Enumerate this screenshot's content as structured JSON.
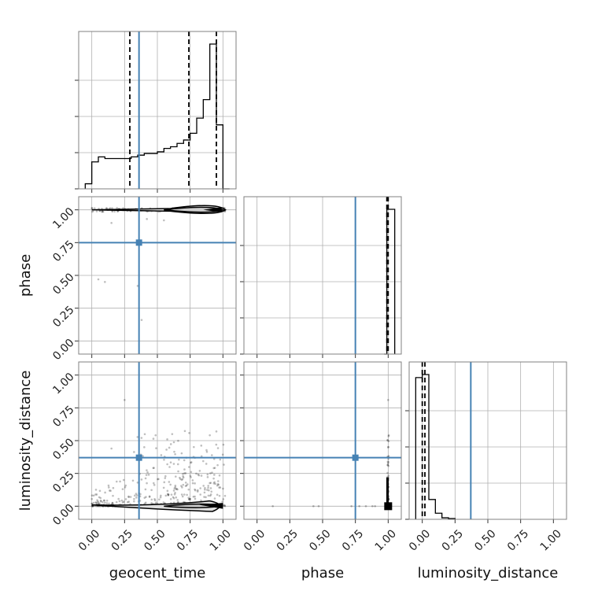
{
  "chart_data": {
    "type": "corner",
    "parameters": [
      "geocent_time",
      "phase",
      "luminosity_distance"
    ],
    "axis_labels": {
      "x": [
        "geocent_time",
        "phase",
        "luminosity_distance"
      ],
      "y": [
        "phase",
        "luminosity_distance"
      ]
    },
    "tick_labels": [
      "0.00",
      "0.25",
      "0.50",
      "0.75",
      "1.00"
    ],
    "axis_range": [
      -0.1,
      1.1
    ],
    "grid": true,
    "truth": {
      "geocent_time": 0.36,
      "phase": 0.75,
      "luminosity_distance": 0.37
    },
    "truth_color": "#4682b4",
    "quantiles": {
      "geocent_time": [
        0.29,
        0.74,
        0.95
      ],
      "phase": [
        0.99,
        1.0
      ],
      "luminosity_distance": [
        0.0,
        0.02
      ]
    },
    "histograms": {
      "geocent_time": {
        "bin_edges": [
          -0.05,
          0.0,
          0.05,
          0.1,
          0.15,
          0.2,
          0.25,
          0.3,
          0.35,
          0.4,
          0.45,
          0.5,
          0.55,
          0.6,
          0.65,
          0.7,
          0.75,
          0.8,
          0.85,
          0.9,
          0.95,
          1.0,
          1.05
        ],
        "counts": [
          0.03,
          0.16,
          0.19,
          0.18,
          0.18,
          0.18,
          0.18,
          0.19,
          0.2,
          0.21,
          0.21,
          0.22,
          0.24,
          0.25,
          0.27,
          0.29,
          0.33,
          0.42,
          0.53,
          0.86,
          0.38,
          0.0
        ]
      },
      "phase": {
        "bin_edges": [
          0.97,
          0.99,
          1.05
        ],
        "counts": [
          0.0,
          1.0
        ]
      },
      "luminosity_distance": {
        "bin_edges": [
          -0.05,
          0.0,
          0.05,
          0.1,
          0.15,
          0.2,
          0.25
        ],
        "counts": [
          0.93,
          0.95,
          0.13,
          0.04,
          0.01,
          0.005
        ]
      }
    }
  }
}
